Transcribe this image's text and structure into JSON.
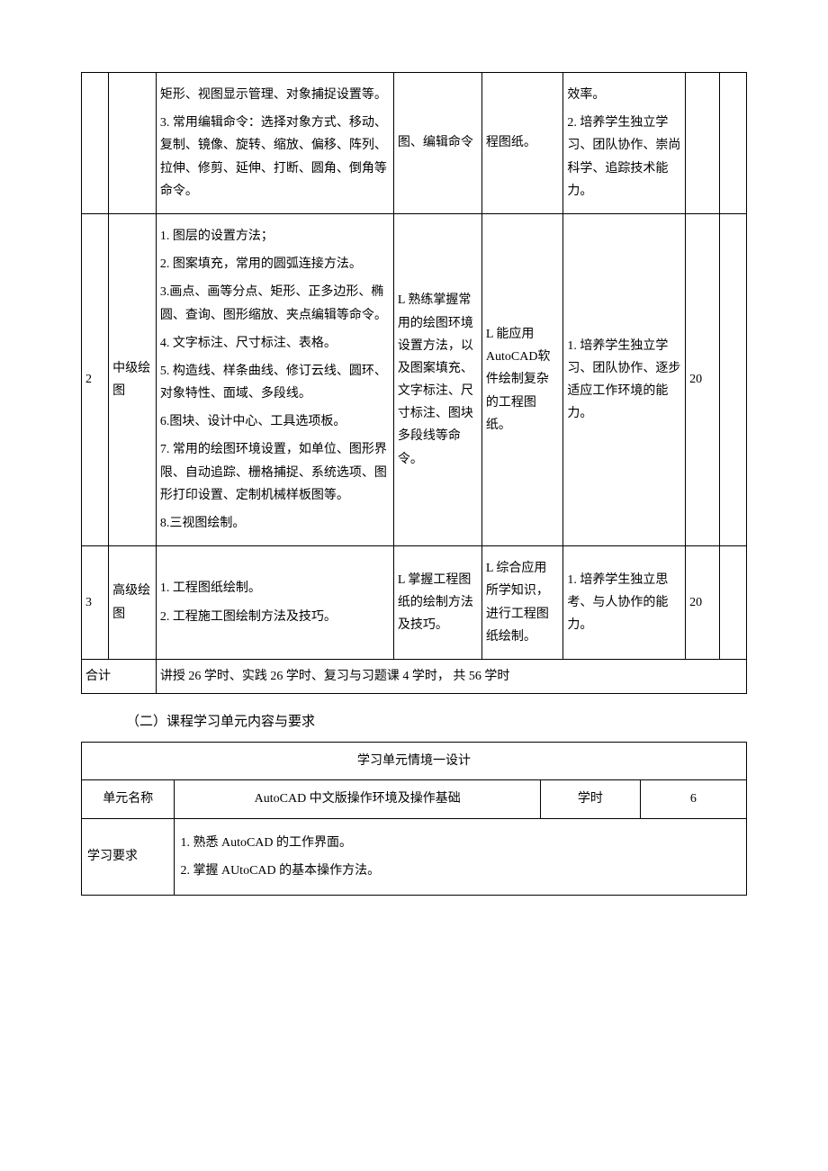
{
  "table1": {
    "rows": [
      {
        "idx": "",
        "name": "",
        "content": "矩形、视图显示管理、对象捕捉设置等。\n\n3. 常用编辑命令：选择对象方式、移动、复制、镜像、旋转、缩放、偏移、阵列、拉伸、修剪、延伸、打断、圆角、倒角等命令。",
        "know": "图、编辑命令",
        "skill": "程图纸。",
        "quality": "效率。\n\n2. 培养学生独立学习、团队协作、崇尚科学、追踪技术能力。",
        "hours": "",
        "last": ""
      },
      {
        "idx": "2",
        "name": "中级绘图",
        "content": "1. 图层的设置方法；\n\n2. 图案填充，常用的圆弧连接方法。\n\n3.画点、画等分点、矩形、正多边形、椭圆、查询、图形缩放、夹点编辑等命令。\n\n4. 文字标注、尺寸标注、表格。\n\n5. 构造线、样条曲线、修订云线、圆环、对象特性、面域、多段线。\n\n6.图块、设计中心、工具选项板。\n\n7. 常用的绘图环境设置，如单位、图形界限、自动追踪、栅格捕捉、系统选项、图形打印设置、定制机械样板图等。\n\n8.三视图绘制。",
        "know": "L 熟练掌握常用的绘图环境设置方法，以及图案填充、文字标注、尺寸标注、图块多段线等命令。",
        "skill": "L 能应用AutoCAD软件绘制复杂的工程图纸。",
        "quality": "1. 培养学生独立学习、团队协作、逐步适应工作环境的能力。",
        "hours": "20",
        "last": ""
      },
      {
        "idx": "3",
        "name": "高级绘图",
        "content": "1. 工程图纸绘制。\n\n2. 工程施工图绘制方法及技巧。",
        "know": "L 掌握工程图纸的绘制方法及技巧。",
        "skill": "L 综合应用所学知识，进行工程图纸绘制。",
        "quality": "1. 培养学生独立思考、与人协作的能力。",
        "hours": "20",
        "last": ""
      }
    ],
    "total_label": "合计",
    "total_text": "讲授 26 学时、实践 26 学时、复习与习题课 4 学时，        共 56 学时"
  },
  "section_title": "（二）课程学习单元内容与要求",
  "table2": {
    "header": "学习单元情境一设计",
    "unit_label": "单元名称",
    "unit_value": "AutoCAD 中文版操作环境及操作基础",
    "hours_label": "学时",
    "hours_value": "6",
    "req_label": "学习要求",
    "req_value": "1. 熟悉 AutoCAD 的工作界面。\n\n2. 掌握 AUtoCAD 的基本操作方法。"
  }
}
